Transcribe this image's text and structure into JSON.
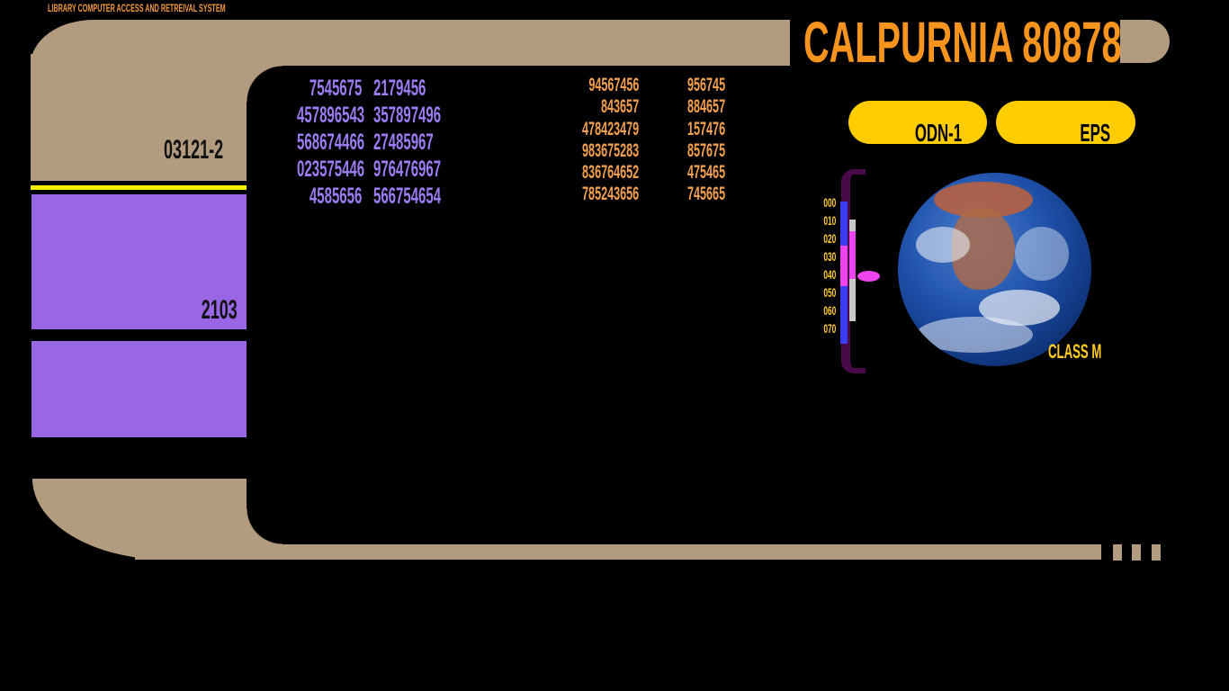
{
  "header": {
    "system_name": "LIBRARY COMPUTER ACCESS AND RETREIVAL SYSTEM",
    "title": "CALPURNIA 80878"
  },
  "sidebar": {
    "top_label": "03121-2",
    "block_label": "2103"
  },
  "buttons": [
    {
      "label": "ODN-1"
    },
    {
      "label": "EPS"
    }
  ],
  "data_purple": [
    [
      "7545675",
      "2179456"
    ],
    [
      "457896543",
      "357897496"
    ],
    [
      "568674466",
      "27485967"
    ],
    [
      "023575446",
      "976476967"
    ],
    [
      "4585656",
      "566754654"
    ]
  ],
  "data_orange": [
    [
      "94567456",
      "956745"
    ],
    [
      "843657",
      "884657"
    ],
    [
      "478423479",
      "157476"
    ],
    [
      "983675283",
      "857675"
    ],
    [
      "836764652",
      "475465"
    ],
    [
      "785243656",
      "745665"
    ]
  ],
  "scale": {
    "labels": [
      "000",
      "010",
      "020",
      "030",
      "040",
      "050",
      "060",
      "070"
    ]
  },
  "planet": {
    "class_label": "CLASS M"
  },
  "colors": {
    "frame": "#b39b80",
    "purple_block": "#9966e6",
    "title_orange": "#f7941d",
    "button_yellow": "#ffcc00",
    "bracket": "#4a0a4a"
  }
}
